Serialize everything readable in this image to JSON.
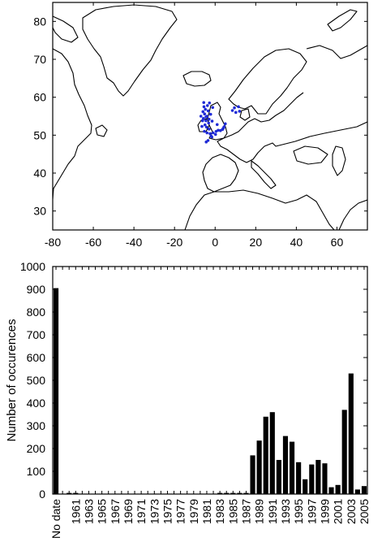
{
  "chart_data": [
    {
      "type": "map",
      "title": "",
      "xlim": [
        -80,
        75
      ],
      "ylim": [
        25,
        85
      ],
      "x_ticks": [
        "-80",
        "-60",
        "-40",
        "-20",
        "0",
        "20",
        "40",
        "60"
      ],
      "y_ticks": [
        "30",
        "40",
        "50",
        "60",
        "70",
        "80"
      ],
      "occurrence_color": "#1f2bd6",
      "occurrence_points": [
        [
          -5.5,
          57.5
        ],
        [
          -4.8,
          56.8
        ],
        [
          -6.0,
          56.2
        ],
        [
          -5.2,
          55.6
        ],
        [
          -4.0,
          55.0
        ],
        [
          -5.8,
          54.4
        ],
        [
          -4.5,
          53.8
        ],
        [
          -3.2,
          53.2
        ],
        [
          -5.0,
          52.7
        ],
        [
          -4.2,
          52.1
        ],
        [
          -3.0,
          51.6
        ],
        [
          -5.3,
          51.0
        ],
        [
          -4.0,
          50.6
        ],
        [
          -2.5,
          50.4
        ],
        [
          -1.0,
          50.6
        ],
        [
          0.5,
          51.0
        ],
        [
          1.5,
          51.3
        ],
        [
          2.6,
          51.2
        ],
        [
          3.6,
          51.5
        ],
        [
          4.4,
          52.2
        ],
        [
          5.0,
          53.0
        ],
        [
          -2.0,
          49.8
        ],
        [
          -3.5,
          48.6
        ],
        [
          -4.4,
          48.2
        ],
        [
          -1.6,
          49.5
        ],
        [
          -6.2,
          53.8
        ],
        [
          -7.0,
          55.0
        ],
        [
          -3.8,
          57.8
        ],
        [
          1.0,
          52.8
        ],
        [
          8.5,
          56.5
        ],
        [
          9.5,
          57.2
        ],
        [
          10.2,
          56.0
        ],
        [
          11.5,
          57.5
        ],
        [
          12.0,
          56.3
        ],
        [
          -4.5,
          54.8
        ],
        [
          -3.0,
          54.2
        ],
        [
          -2.2,
          55.5
        ],
        [
          -6.5,
          52.3
        ],
        [
          -1.5,
          53.7
        ],
        [
          0.2,
          50.2
        ],
        [
          -2.8,
          58.5
        ],
        [
          -5.6,
          58.6
        ],
        [
          -1.2,
          57.3
        ],
        [
          -3.4,
          56.4
        ],
        [
          4.0,
          51.8
        ]
      ]
    },
    {
      "type": "bar",
      "title": "",
      "xlabel": "",
      "ylabel": "Number of occurences",
      "ylim": [
        0,
        1000
      ],
      "y_ticks": [
        "0",
        "100",
        "200",
        "300",
        "400",
        "500",
        "600",
        "700",
        "800",
        "900",
        "1000"
      ],
      "categories": [
        "No date",
        "1959",
        "1960",
        "1961",
        "1962",
        "1963",
        "1964",
        "1965",
        "1966",
        "1967",
        "1968",
        "1969",
        "1970",
        "1971",
        "1972",
        "1973",
        "1974",
        "1975",
        "1976",
        "1977",
        "1978",
        "1979",
        "1980",
        "1981",
        "1982",
        "1983",
        "1984",
        "1985",
        "1986",
        "1987",
        "1988",
        "1989",
        "1990",
        "1991",
        "1992",
        "1993",
        "1994",
        "1995",
        "1996",
        "1997",
        "1998",
        "1999",
        "2000",
        "2001",
        "2002",
        "2003",
        "2004",
        "2005"
      ],
      "tick_labels": [
        "No date",
        "1961",
        "1963",
        "1965",
        "1967",
        "1969",
        "1971",
        "1973",
        "1975",
        "1977",
        "1979",
        "1981",
        "1983",
        "1985",
        "1987",
        "1989",
        "1991",
        "1993",
        "1995",
        "1997",
        "1999",
        "2001",
        "2003",
        "2005"
      ],
      "values": [
        905,
        0,
        5,
        5,
        0,
        0,
        0,
        0,
        0,
        0,
        0,
        0,
        0,
        0,
        0,
        0,
        0,
        0,
        0,
        0,
        0,
        0,
        0,
        0,
        0,
        5,
        5,
        5,
        5,
        5,
        170,
        235,
        340,
        360,
        150,
        255,
        230,
        140,
        65,
        130,
        150,
        135,
        30,
        40,
        370,
        530,
        20,
        35
      ],
      "bar_color": "#000000"
    }
  ]
}
